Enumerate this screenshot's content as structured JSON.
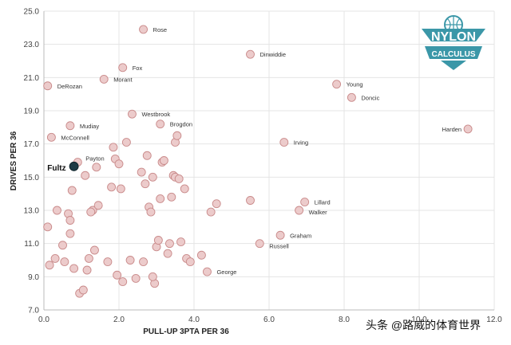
{
  "brand": {
    "logo_line1": "NYLON",
    "logo_line2": "CALCULUS",
    "logo_color": "#3b97a8"
  },
  "watermark": "头条 @路威的体育世界",
  "chart_data": {
    "type": "scatter",
    "xlabel": "PULL-UP 3PTA PER 36",
    "ylabel": "DRIVES PER 36",
    "xlim": [
      0.0,
      12.0
    ],
    "ylim": [
      7.0,
      25.0
    ],
    "x_ticks": [
      "0.0",
      "2.0",
      "4.0",
      "6.0",
      "8.0",
      "10.0",
      "12.0"
    ],
    "y_ticks": [
      "7.0",
      "9.0",
      "11.0",
      "13.0",
      "15.0",
      "17.0",
      "19.0",
      "21.0",
      "23.0",
      "25.0"
    ],
    "grid": true,
    "colors": {
      "point_fill": "#eccbcb",
      "point_stroke": "#c98a8a",
      "highlight_fill": "#1d3b45",
      "grid": "#e4e4e4"
    },
    "highlight": "Fultz",
    "labeled_points": [
      {
        "name": "Rose",
        "x": 2.65,
        "y": 23.9
      },
      {
        "name": "Dinwiddie",
        "x": 5.5,
        "y": 22.4
      },
      {
        "name": "Fox",
        "x": 2.1,
        "y": 21.6
      },
      {
        "name": "Morant",
        "x": 1.6,
        "y": 20.9
      },
      {
        "name": "DeRozan",
        "x": 0.1,
        "y": 20.5
      },
      {
        "name": "Young",
        "x": 7.8,
        "y": 20.6
      },
      {
        "name": "Doncic",
        "x": 8.2,
        "y": 19.8
      },
      {
        "name": "Westbrook",
        "x": 2.35,
        "y": 18.8
      },
      {
        "name": "Brogdon",
        "x": 3.1,
        "y": 18.2
      },
      {
        "name": "Mudiay",
        "x": 0.7,
        "y": 18.1
      },
      {
        "name": "Harden",
        "x": 11.3,
        "y": 17.9
      },
      {
        "name": "McConnell",
        "x": 0.2,
        "y": 17.4
      },
      {
        "name": "Irving",
        "x": 6.4,
        "y": 17.1
      },
      {
        "name": "Payton",
        "x": 0.9,
        "y": 15.9
      },
      {
        "name": "Fultz",
        "x": 0.8,
        "y": 15.65
      },
      {
        "name": "Lillard",
        "x": 6.95,
        "y": 13.5
      },
      {
        "name": "Walker",
        "x": 6.8,
        "y": 13.0
      },
      {
        "name": "Graham",
        "x": 6.3,
        "y": 11.5
      },
      {
        "name": "Russell",
        "x": 5.75,
        "y": 11.0
      },
      {
        "name": "George",
        "x": 4.35,
        "y": 9.3
      }
    ],
    "other_points": [
      {
        "x": 0.1,
        "y": 12.0
      },
      {
        "x": 0.15,
        "y": 9.7
      },
      {
        "x": 0.35,
        "y": 13.0
      },
      {
        "x": 0.5,
        "y": 10.9
      },
      {
        "x": 0.55,
        "y": 9.9
      },
      {
        "x": 0.65,
        "y": 12.8
      },
      {
        "x": 0.7,
        "y": 12.4
      },
      {
        "x": 0.7,
        "y": 11.6
      },
      {
        "x": 0.75,
        "y": 14.2
      },
      {
        "x": 0.8,
        "y": 9.5
      },
      {
        "x": 0.95,
        "y": 8.0
      },
      {
        "x": 1.05,
        "y": 8.2
      },
      {
        "x": 1.1,
        "y": 15.1
      },
      {
        "x": 1.15,
        "y": 9.4
      },
      {
        "x": 1.2,
        "y": 10.1
      },
      {
        "x": 1.3,
        "y": 13.0
      },
      {
        "x": 1.35,
        "y": 10.6
      },
      {
        "x": 1.4,
        "y": 15.6
      },
      {
        "x": 1.45,
        "y": 13.3
      },
      {
        "x": 1.7,
        "y": 9.9
      },
      {
        "x": 1.8,
        "y": 14.4
      },
      {
        "x": 1.85,
        "y": 16.8
      },
      {
        "x": 1.9,
        "y": 16.1
      },
      {
        "x": 1.95,
        "y": 9.1
      },
      {
        "x": 2.0,
        "y": 15.8
      },
      {
        "x": 2.05,
        "y": 14.3
      },
      {
        "x": 2.1,
        "y": 8.7
      },
      {
        "x": 2.2,
        "y": 17.1
      },
      {
        "x": 2.3,
        "y": 10.0
      },
      {
        "x": 2.45,
        "y": 8.9
      },
      {
        "x": 2.6,
        "y": 15.3
      },
      {
        "x": 2.7,
        "y": 14.6
      },
      {
        "x": 2.75,
        "y": 16.3
      },
      {
        "x": 2.8,
        "y": 13.2
      },
      {
        "x": 2.85,
        "y": 12.9
      },
      {
        "x": 2.9,
        "y": 15.0
      },
      {
        "x": 2.95,
        "y": 8.6
      },
      {
        "x": 3.0,
        "y": 10.8
      },
      {
        "x": 3.05,
        "y": 11.2
      },
      {
        "x": 3.1,
        "y": 13.7
      },
      {
        "x": 3.15,
        "y": 15.9
      },
      {
        "x": 3.2,
        "y": 16.0
      },
      {
        "x": 3.3,
        "y": 10.4
      },
      {
        "x": 3.35,
        "y": 11.0
      },
      {
        "x": 3.4,
        "y": 13.8
      },
      {
        "x": 3.45,
        "y": 15.1
      },
      {
        "x": 3.5,
        "y": 15.0
      },
      {
        "x": 3.5,
        "y": 17.1
      },
      {
        "x": 3.55,
        "y": 17.5
      },
      {
        "x": 3.6,
        "y": 14.9
      },
      {
        "x": 3.65,
        "y": 11.1
      },
      {
        "x": 3.75,
        "y": 14.3
      },
      {
        "x": 3.8,
        "y": 10.1
      },
      {
        "x": 3.9,
        "y": 9.9
      },
      {
        "x": 4.2,
        "y": 10.3
      },
      {
        "x": 4.45,
        "y": 12.9
      },
      {
        "x": 4.6,
        "y": 13.4
      },
      {
        "x": 5.5,
        "y": 13.6
      },
      {
        "x": 2.9,
        "y": 9.0
      },
      {
        "x": 2.65,
        "y": 9.9
      },
      {
        "x": 1.25,
        "y": 12.9
      },
      {
        "x": 0.3,
        "y": 10.1
      }
    ]
  }
}
